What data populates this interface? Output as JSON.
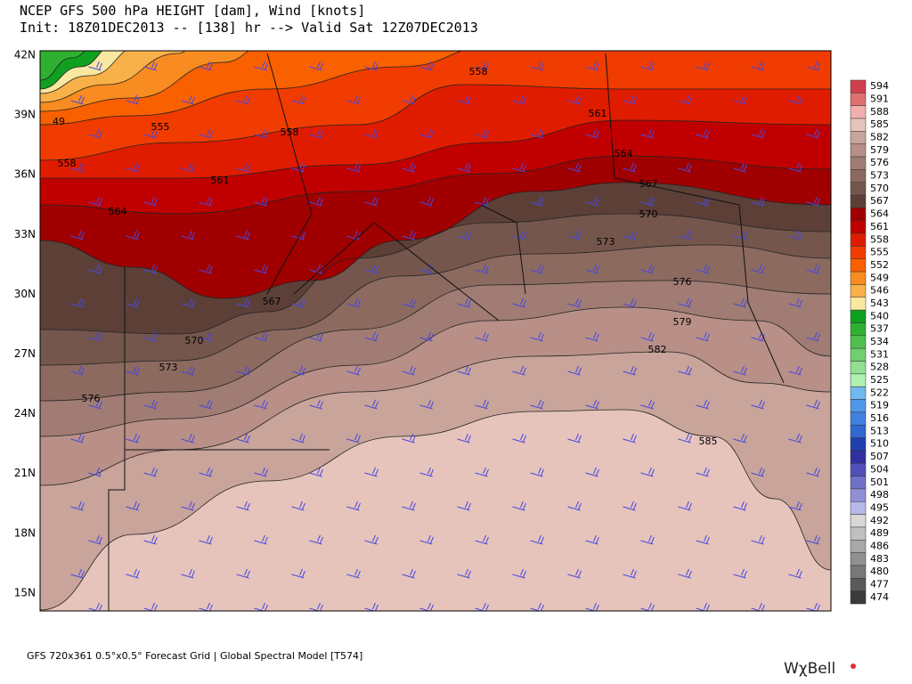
{
  "header": {
    "title": "NCEP GFS 500 hPa HEIGHT [dam], Wind [knots]",
    "subtitle": "Init: 18Z01DEC2013 -- [138] hr --> Valid Sat 12Z07DEC2013"
  },
  "map": {
    "latitude_labels": [
      "42N",
      "39N",
      "36N",
      "33N",
      "30N",
      "27N",
      "24N",
      "21N",
      "18N",
      "15N"
    ],
    "contour_labels": [
      558,
      49,
      555,
      558,
      558,
      561,
      561,
      564,
      564,
      567,
      570,
      567,
      573,
      570,
      576,
      573,
      579,
      576,
      582,
      585
    ]
  },
  "colorbar": {
    "levels": [
      594,
      591,
      588,
      585,
      582,
      579,
      576,
      573,
      570,
      567,
      564,
      561,
      558,
      555,
      552,
      549,
      546,
      543,
      540,
      537,
      534,
      531,
      528,
      525,
      522,
      519,
      516,
      513,
      510,
      507,
      504,
      501,
      498,
      495,
      492,
      489,
      486,
      483,
      480,
      477,
      474
    ],
    "colors": [
      "#d0404a",
      "#e07070",
      "#f0b0b0",
      "#e6c4bc",
      "#c8a49a",
      "#b89088",
      "#a07c74",
      "#8c6a60",
      "#74564c",
      "#5c4038",
      "#a00000",
      "#c00000",
      "#e01c00",
      "#f03c00",
      "#f86000",
      "#f88c20",
      "#f8b048",
      "#f8e8a0",
      "#10a020",
      "#30b030",
      "#50c050",
      "#70d070",
      "#90e090",
      "#b0f0b0",
      "#70b8f0",
      "#5098e8",
      "#4080e0",
      "#3068d0",
      "#2040b0",
      "#3030a0",
      "#5050b8",
      "#7070c8",
      "#9090d8",
      "#b8b8e8",
      "#d8d8d8",
      "#c0c0c0",
      "#a8a8a8",
      "#909090",
      "#787878",
      "#5a5a5a",
      "#3a3a3a"
    ]
  },
  "footer": {
    "text": "GFS 720x361 0.5°x0.5° Forecast Grid | Global Spectral Model [T574]",
    "logo": "WχBell"
  }
}
